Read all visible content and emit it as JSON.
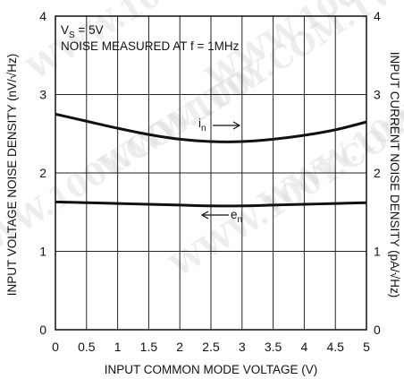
{
  "chart_data": {
    "type": "line",
    "title": "",
    "xlabel": "INPUT COMMON MODE VOLTAGE (V)",
    "ylabel_left": "INPUT VOLTAGE NOISE DENSITY (nV/√Hz)",
    "ylabel_right": "INPUT CURRENT NOISE DENSITY (pA/√Hz)",
    "xlim": [
      0,
      5
    ],
    "ylim": [
      0,
      4
    ],
    "x_ticks": [
      "0",
      "0.5",
      "1",
      "1.5",
      "2",
      "2.5",
      "3",
      "3.5",
      "4",
      "4.5",
      "5"
    ],
    "y_ticks_left": [
      "0",
      "1",
      "2",
      "3",
      "4"
    ],
    "y_ticks_right": [
      "0",
      "1",
      "2",
      "3",
      "4"
    ],
    "grid": true,
    "annotations": {
      "vs_main": "V",
      "vs_sub": "S",
      "vs_rest": " = 5V",
      "condition": "NOISE MEASURED AT f = 1MHz"
    },
    "series": [
      {
        "name": "i",
        "name_sub": "n",
        "x": [
          0,
          0.5,
          1,
          1.5,
          2,
          2.5,
          3,
          3.5,
          4,
          4.5,
          5
        ],
        "values": [
          2.75,
          2.66,
          2.57,
          2.49,
          2.43,
          2.4,
          2.4,
          2.43,
          2.48,
          2.55,
          2.65
        ]
      },
      {
        "name": "e",
        "name_sub": "n",
        "x": [
          0,
          0.5,
          1,
          1.5,
          2,
          2.5,
          3,
          3.5,
          4,
          4.5,
          5
        ],
        "values": [
          1.63,
          1.62,
          1.61,
          1.6,
          1.59,
          1.58,
          1.58,
          1.59,
          1.6,
          1.61,
          1.62
        ]
      }
    ]
  },
  "watermark": "WWW.100Y.COM.TW",
  "colors": {
    "line": "#111111",
    "grid": "#222222",
    "background": "#ffffff"
  }
}
